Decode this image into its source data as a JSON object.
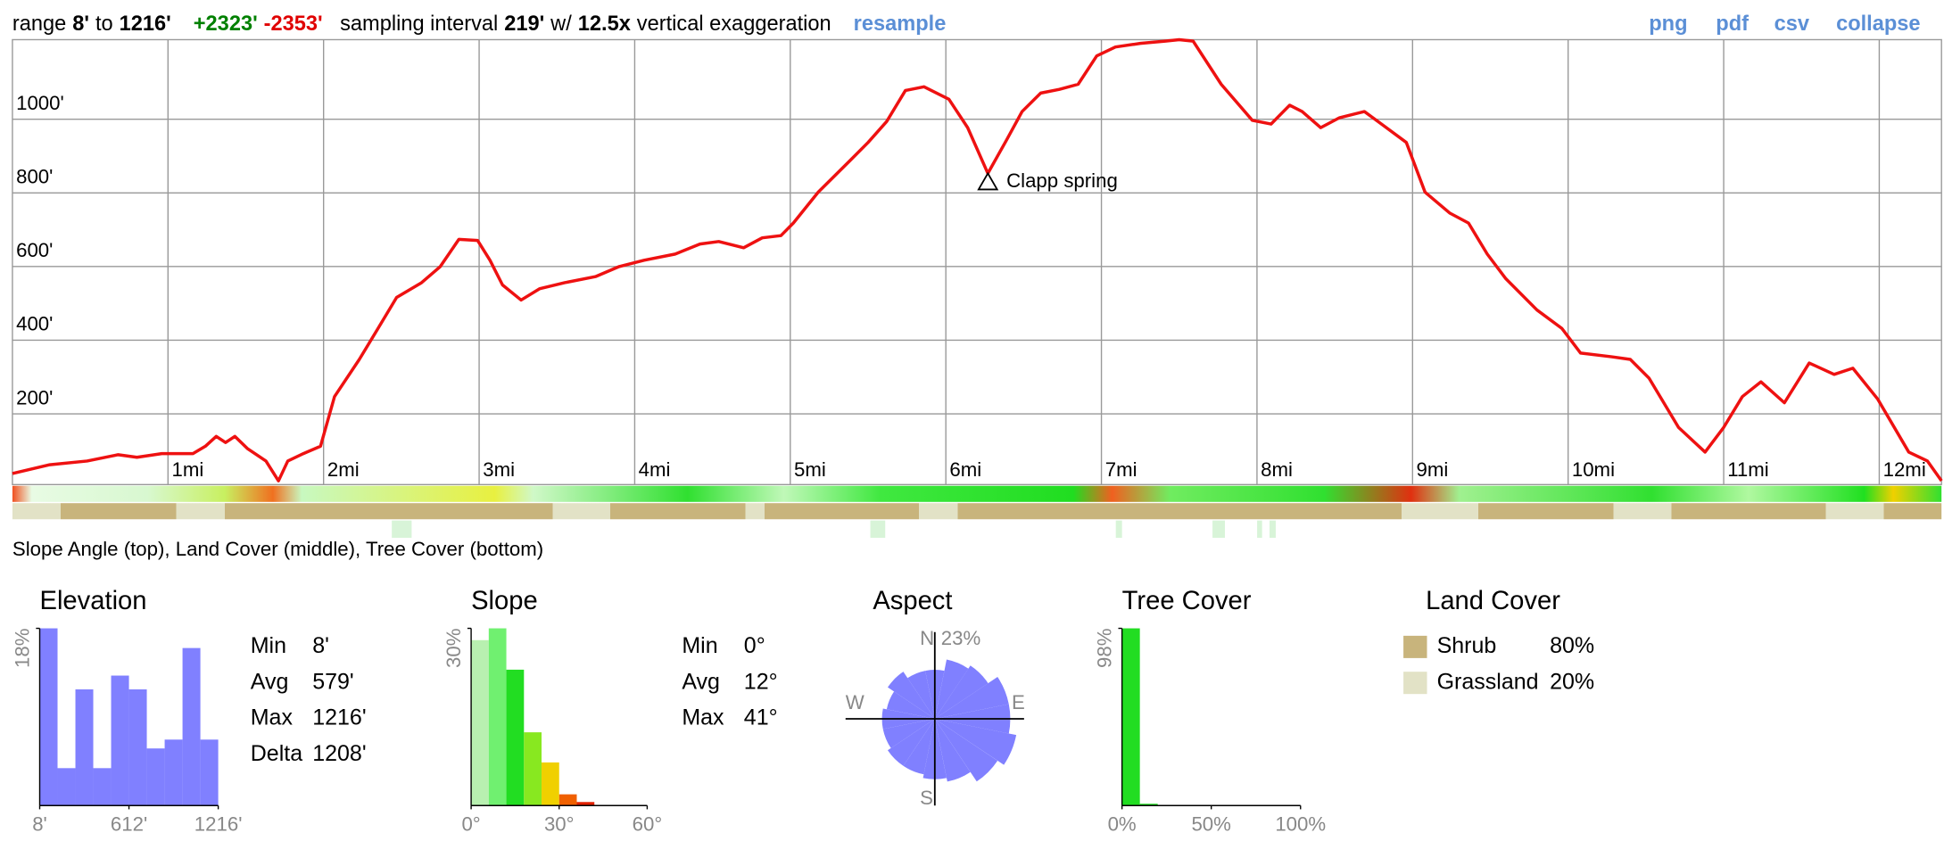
{
  "header": {
    "range_label": "range",
    "min": "8'",
    "to": "to",
    "max": "1216'",
    "gain": "+2323'",
    "loss": "-2353'",
    "interval_label": "sampling interval",
    "interval": "219'",
    "with": "w/",
    "exaggeration": "12.5x",
    "exaggeration_label": "vertical exaggeration",
    "resample": "resample",
    "links": [
      "png",
      "pdf",
      "csv",
      "collapse"
    ]
  },
  "strip_caption": "Slope Angle (top), Land Cover (middle), Tree Cover (bottom)",
  "chart_data": [
    {
      "type": "line",
      "color": "#ee1111",
      "x": [
        0,
        0.24,
        0.48,
        0.68,
        0.8,
        0.96,
        1.16,
        1.24,
        1.31,
        1.37,
        1.43,
        1.51,
        1.63,
        1.71,
        1.77,
        1.87,
        1.98,
        2.07,
        2.23,
        2.35,
        2.47,
        2.63,
        2.75,
        2.87,
        2.99,
        3.07,
        3.15,
        3.27,
        3.39,
        3.55,
        3.75,
        3.9,
        4.06,
        4.26,
        4.42,
        4.54,
        4.7,
        4.82,
        4.94,
        5.02,
        5.18,
        5.38,
        5.5,
        5.62,
        5.74,
        5.86,
        6.02,
        6.14,
        6.27,
        6.39,
        6.49,
        6.61,
        6.73,
        6.85,
        6.97,
        7.09,
        7.25,
        7.41,
        7.5,
        7.59,
        7.77,
        7.97,
        8.09,
        8.21,
        8.29,
        8.41,
        8.53,
        8.69,
        8.8,
        8.96,
        9.08,
        9.24,
        9.36,
        9.48,
        9.6,
        9.8,
        9.96,
        10.08,
        10.28,
        10.4,
        10.52,
        10.71,
        10.88,
        11.0,
        11.12,
        11.24,
        11.39,
        11.55,
        11.71,
        11.83,
        11.99,
        12.19,
        12.31,
        12.4
      ],
      "values": [
        38,
        62,
        72,
        89,
        82,
        92,
        92,
        112,
        139,
        122,
        139,
        106,
        72,
        18,
        72,
        92,
        112,
        247,
        348,
        432,
        516,
        556,
        600,
        674,
        671,
        617,
        550,
        509,
        540,
        556,
        573,
        600,
        617,
        634,
        661,
        668,
        651,
        678,
        684,
        718,
        802,
        886,
        937,
        994,
        1078,
        1088,
        1054,
        977,
        853,
        943,
        1021,
        1071,
        1081,
        1095,
        1172,
        1196,
        1206,
        1212,
        1216,
        1212,
        1095,
        997,
        987,
        1038,
        1021,
        977,
        1004,
        1021,
        987,
        937,
        802,
        745,
        718,
        634,
        567,
        482,
        432,
        365,
        355,
        348,
        297,
        163,
        96,
        163,
        247,
        287,
        230,
        338,
        307,
        324,
        240,
        96,
        72,
        18
      ],
      "xlim": [
        0,
        12.4
      ],
      "ylim": [
        8,
        1216
      ],
      "xticks": [
        {
          "value": 1,
          "label": "1mi"
        },
        {
          "value": 2,
          "label": "2mi"
        },
        {
          "value": 3,
          "label": "3mi"
        },
        {
          "value": 4,
          "label": "4mi"
        },
        {
          "value": 5,
          "label": "5mi"
        },
        {
          "value": 6,
          "label": "6mi"
        },
        {
          "value": 7,
          "label": "7mi"
        },
        {
          "value": 8,
          "label": "8mi"
        },
        {
          "value": 9,
          "label": "9mi"
        },
        {
          "value": 10,
          "label": "10mi"
        },
        {
          "value": 11,
          "label": "11mi"
        },
        {
          "value": 12,
          "label": "12mi"
        }
      ],
      "yticks": [
        {
          "value": 200,
          "label": "200'"
        },
        {
          "value": 400,
          "label": "400'"
        },
        {
          "value": 600,
          "label": "600'"
        },
        {
          "value": 800,
          "label": "800'"
        },
        {
          "value": 1000,
          "label": "1000'"
        }
      ],
      "grid": true,
      "annotations": [
        {
          "text": "Clapp spring",
          "x": 6.27,
          "y": 853
        }
      ]
    },
    {
      "type": "histogram",
      "title": "Elevation",
      "color": "#8080ff",
      "bins": [
        8,
        128.8,
        249.6,
        370.4,
        491.2,
        612,
        732.8,
        853.6,
        974.4,
        1095.2,
        1216
      ],
      "values": [
        18,
        3.8,
        11.8,
        3.8,
        13.2,
        11.8,
        5.8,
        6.7,
        16,
        6.7
      ],
      "xlim": [
        8,
        1216
      ],
      "ylim": [
        0,
        18
      ],
      "xticks": [
        {
          "value": 8,
          "label": "8'"
        },
        {
          "value": 612,
          "label": "612'"
        },
        {
          "value": 1216,
          "label": "1216'"
        }
      ],
      "yticks": [
        {
          "value": 18,
          "label": "18%"
        }
      ]
    },
    {
      "type": "histogram",
      "title": "Slope",
      "colors": [
        "#b8f0b0",
        "#70f070",
        "#22dd22",
        "#88e820",
        "#f0d000",
        "#f06000",
        "#e02000"
      ],
      "bins": [
        0,
        6,
        12,
        18,
        24,
        30,
        36,
        42
      ],
      "values": [
        28,
        30,
        23,
        12.4,
        7.3,
        1.9,
        0.6
      ],
      "xlim": [
        0,
        60
      ],
      "ylim": [
        0,
        30
      ],
      "xticks": [
        {
          "value": 0,
          "label": "0°"
        },
        {
          "value": 30,
          "label": "30°"
        },
        {
          "value": 60,
          "label": "60°"
        }
      ],
      "yticks": [
        {
          "value": 30,
          "label": "30%"
        }
      ]
    },
    {
      "type": "rose",
      "title": "Aspect",
      "color": "#8080ff",
      "values": [
        13,
        16,
        17,
        20,
        20,
        22,
        20,
        17,
        16,
        15,
        15,
        14,
        14,
        13,
        15,
        13
      ],
      "rlim": [
        0,
        23
      ],
      "rticks": [
        {
          "value": 23,
          "label": "23%"
        }
      ],
      "directions": [
        "N",
        "E",
        "S",
        "W"
      ]
    },
    {
      "type": "histogram",
      "title": "Tree Cover",
      "color": "#22dd22",
      "bins": [
        0,
        10,
        20,
        30,
        40,
        50,
        60,
        70,
        80,
        90,
        100
      ],
      "values": [
        98,
        1,
        0,
        0,
        0,
        0,
        0,
        0,
        0,
        0
      ],
      "xlim": [
        0,
        100
      ],
      "ylim": [
        0,
        98
      ],
      "xticks": [
        {
          "value": 0,
          "label": "0%"
        },
        {
          "value": 50,
          "label": "50%"
        },
        {
          "value": 100,
          "label": "100%"
        }
      ],
      "yticks": [
        {
          "value": 98,
          "label": "98%"
        }
      ]
    }
  ],
  "elevation_stats": [
    [
      "Min",
      "8'"
    ],
    [
      "Avg",
      "579'"
    ],
    [
      "Max",
      "1216'"
    ],
    [
      "Delta",
      "1208'"
    ]
  ],
  "slope_stats": [
    [
      "Min",
      "0°"
    ],
    [
      "Avg",
      "12°"
    ],
    [
      "Max",
      "41°"
    ]
  ],
  "land_cover": {
    "title": "Land Cover",
    "items": [
      {
        "name": "Shrub",
        "share": "80%",
        "color": "#c8b47c"
      },
      {
        "name": "Grassland",
        "share": "20%",
        "color": "#e2e2c6"
      }
    ]
  }
}
